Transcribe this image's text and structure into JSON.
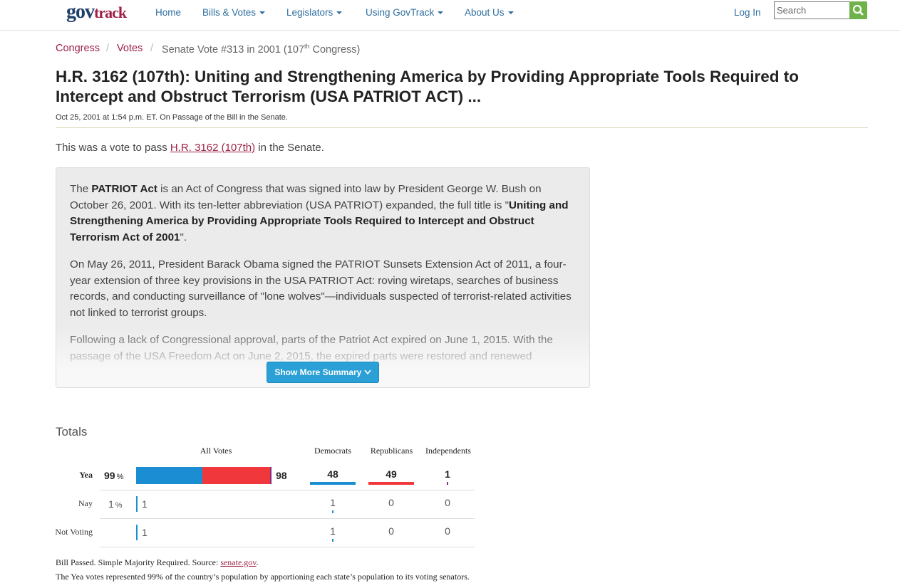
{
  "header": {
    "logo": [
      "gov",
      "track"
    ],
    "nav": [
      "Home",
      "Bills & Votes",
      "Legislators",
      "Using GovTrack",
      "About Us"
    ],
    "login": "Log In",
    "search_placeholder": "Search"
  },
  "breadcrumb": {
    "links": [
      "Congress",
      "Votes"
    ],
    "current": [
      "Senate Vote #313 in 2001 (107",
      "th",
      " Congress)"
    ]
  },
  "title": "H.R. 3162 (107th): Uniting and Strengthening America by Providing Appropriate Tools Required to Intercept and Obstruct Terrorism (USA PATRIOT ACT) ...",
  "meta": "Oct 25, 2001 at 1:54 p.m. ET. On Passage of the Bill in the Senate.",
  "intro": [
    "This was a vote to pass ",
    "H.R. 3162 (107th)",
    " in the Senate."
  ],
  "summary": {
    "paragraphs": [
      [
        "The ",
        {
          "bold": "PATRIOT Act"
        },
        " is an Act of Congress that was signed into law by President George W. Bush on October 26, 2001. With its ten-letter abbreviation (USA PATRIOT) expanded, the full title is \"",
        {
          "bold": "Uniting and Strengthening America by Providing Appropriate Tools Required to Intercept and Obstruct Terrorism Act of 2001"
        },
        "\"."
      ],
      [
        "On May 26, 2011, President Barack Obama signed the PATRIOT Sunsets Extension Act of 2011, a four-year extension of three key provisions in the USA PATRIOT Act: roving wiretaps, searches of business records, and conducting surveillance of \"lone wolves\"—individuals suspected of terrorist-related activities not linked to terrorist groups."
      ],
      [
        "Following a lack of Congressional approval, parts of the Patriot Act expired on June 1, 2015. With the passage of the USA Freedom Act on June 2, 2015, the expired parts were restored and renewed"
      ]
    ],
    "button": "Show More Summary"
  },
  "totals": {
    "heading": "Totals",
    "columns": [
      "All Votes",
      "Democrats",
      "Republicans",
      "Independents"
    ],
    "colors": {
      "democrats": "#1b8ed3",
      "republicans": "#f0373c",
      "independents": "#8a2a7e"
    },
    "rows": [
      {
        "label": "Yea",
        "percent": 99,
        "percent_unit": "%",
        "total": 98,
        "democrats": 48,
        "republicans": 49,
        "independents": 1
      },
      {
        "label": "Nay",
        "percent": 1,
        "percent_unit": "%",
        "total": 1,
        "democrats": 1,
        "republicans": 0,
        "independents": 0
      },
      {
        "label": "Not Voting",
        "total": 1,
        "democrats": 1,
        "republicans": 0,
        "independents": 0
      }
    ]
  },
  "footnote": {
    "line1": [
      "Bill Passed. Simple Majority Required. Source: ",
      "senate.gov",
      "."
    ],
    "line2": "The Yea votes represented 99% of the country’s population by apportioning each state’s population to its voting senators."
  }
}
